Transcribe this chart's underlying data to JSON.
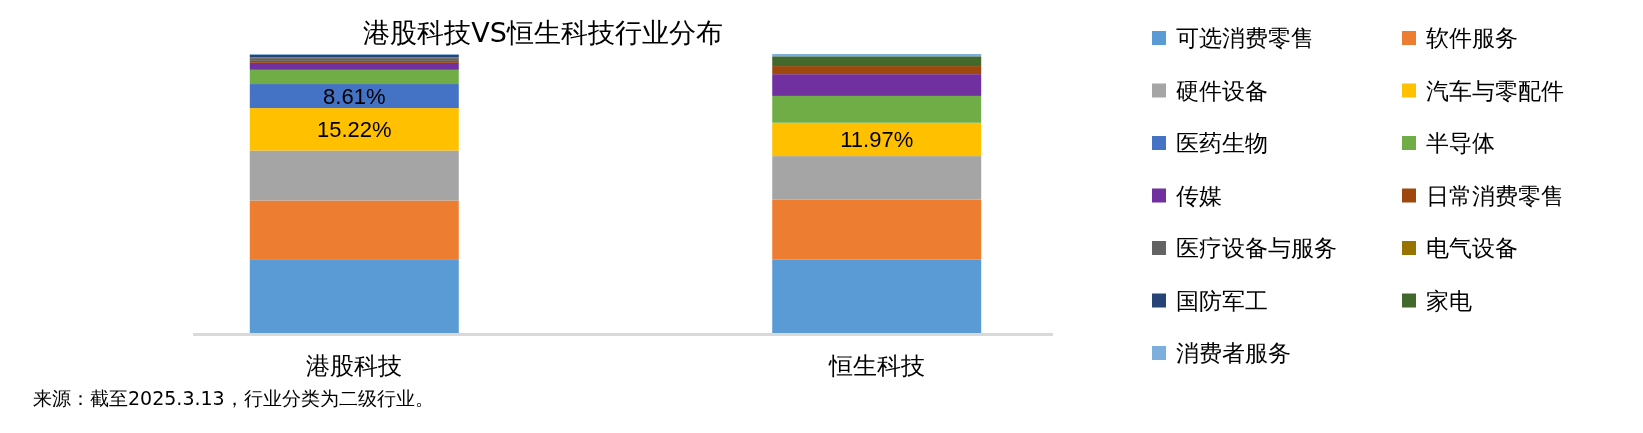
{
  "chart_data": {
    "type": "bar",
    "title": "港股科技VS恒生科技行业分布",
    "stacked": true,
    "legend": "right",
    "categories": [
      "港股科技",
      "恒生科技"
    ],
    "series": [
      {
        "name": "可选消费零售",
        "color": "#5b9bd5",
        "values": [
          26.2,
          26.4
        ]
      },
      {
        "name": "软件服务",
        "color": "#ed7d31",
        "values": [
          21.3,
          21.4
        ]
      },
      {
        "name": "硬件设备",
        "color": "#a5a5a5",
        "values": [
          17.9,
          15.6
        ]
      },
      {
        "name": "汽车与零配件",
        "color": "#ffc000",
        "values": [
          15.22,
          11.97
        ],
        "value_labels": [
          "15.22%",
          "11.97%"
        ]
      },
      {
        "name": "医药生物",
        "color": "#4472c4",
        "values": [
          8.61,
          0
        ],
        "value_labels": [
          "8.61%",
          null
        ]
      },
      {
        "name": "半导体",
        "color": "#70ad47",
        "values": [
          5.1,
          9.6
        ]
      },
      {
        "name": "传媒",
        "color": "#7030a0",
        "values": [
          2.5,
          7.8
        ]
      },
      {
        "name": "日常消费零售",
        "color": "#9e480e",
        "values": [
          0.7,
          2.9
        ]
      },
      {
        "name": "医疗设备与服务",
        "color": "#636363",
        "values": [
          1.0,
          0
        ]
      },
      {
        "name": "电气设备",
        "color": "#997300",
        "values": [
          0.3,
          0
        ]
      },
      {
        "name": "国防军工",
        "color": "#264478",
        "values": [
          0.9,
          0
        ]
      },
      {
        "name": "家电",
        "color": "#43682b",
        "values": [
          0,
          3.5
        ]
      },
      {
        "name": "消费者服务",
        "color": "#7cafdd",
        "values": [
          0.27,
          0.83
        ]
      }
    ],
    "annotations": [
      "来源：截至2025.3.13，行业分类为二级行业。"
    ]
  }
}
